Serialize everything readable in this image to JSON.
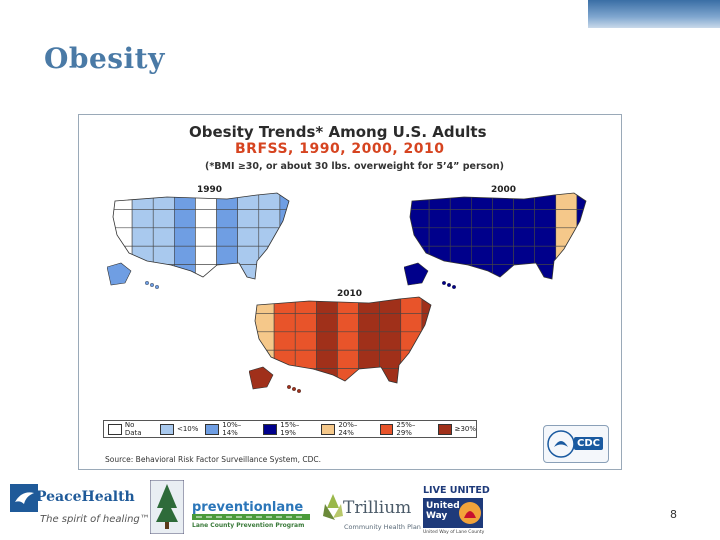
{
  "slide": {
    "title": "Obesity",
    "page_number": "8"
  },
  "figure": {
    "title": "Obesity Trends* Among U.S. Adults",
    "subtitle": "BRFSS, 1990, 2000, 2010",
    "note": "(*BMI ≥30, or about 30 lbs. overweight for 5’4” person)",
    "maps": [
      {
        "year": "1990",
        "colors": [
          "#ffffff",
          "#a9c9ee",
          "#6f9ee3",
          "#6f9ee3",
          "#a9c9ee",
          "#6f9ee3",
          "#ffffff",
          "#a9c9ee",
          "#6f9ee3",
          "#6f9ee3",
          "#a9c9ee",
          "#6f9ee3",
          "#ffffff",
          "#6f9ee3",
          "#a9c9ee",
          "#6f9ee3"
        ]
      },
      {
        "year": "2000",
        "colors": [
          "#00008b",
          "#f5c88a",
          "#00008b",
          "#00008b",
          "#f5c88a",
          "#00008b",
          "#f5c88a",
          "#00008b",
          "#00008b",
          "#f5c88a",
          "#00008b",
          "#f5c88a",
          "#00008b",
          "#f5c88a",
          "#00008b",
          "#00008b"
        ]
      },
      {
        "year": "2010",
        "colors": [
          "#f5c88a",
          "#e8542a",
          "#e8542a",
          "#a0301a",
          "#e8542a",
          "#a0301a",
          "#f5c88a",
          "#e8542a",
          "#a0301a",
          "#e8542a",
          "#a0301a",
          "#a0301a",
          "#e8542a",
          "#f5c88a",
          "#e8542a",
          "#a0301a"
        ]
      }
    ],
    "legend": [
      {
        "label": "No Data",
        "color": "#ffffff"
      },
      {
        "label": "<10%",
        "color": "#a9c9ee"
      },
      {
        "label": "10%–14%",
        "color": "#6f9ee3"
      },
      {
        "label": "15%–19%",
        "color": "#00008b"
      },
      {
        "label": "20%–24%",
        "color": "#f5c88a"
      },
      {
        "label": "25%–29%",
        "color": "#e8542a"
      },
      {
        "label": "≥30%",
        "color": "#a0301a"
      }
    ],
    "source": "Source: Behavioral Risk Factor Surveillance System, CDC.",
    "cdc_label": "CDC"
  },
  "logos": {
    "peacehealth": {
      "name": "PeaceHealth",
      "tagline": "The spirit of healing™"
    },
    "preventionlane": {
      "name": "preventionlane",
      "tagline": "Lane County Prevention Program"
    },
    "trillium": {
      "name": "Trillium",
      "tagline": "Community Health Plan"
    },
    "unitedway": {
      "top": "LIVE UNITED",
      "name": "United Way",
      "tagline": "United Way of Lane County"
    }
  }
}
